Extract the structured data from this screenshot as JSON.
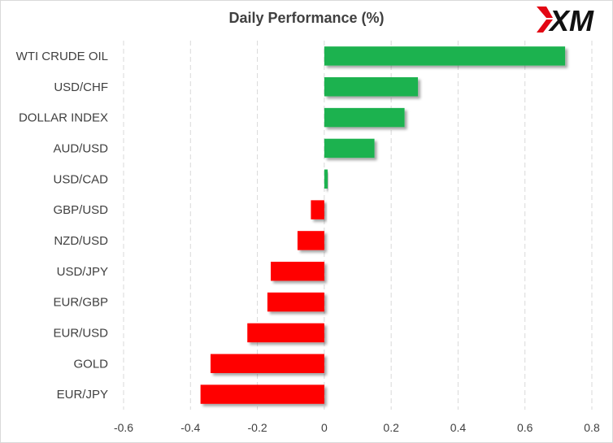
{
  "chart_data": {
    "type": "bar",
    "orientation": "horizontal",
    "title": "Daily Performance (%)",
    "categories": [
      "WTI CRUDE OIL",
      "USD/CHF",
      "DOLLAR INDEX",
      "AUD/USD",
      "USD/CAD",
      "GBP/USD",
      "NZD/USD",
      "USD/JPY",
      "EUR/GBP",
      "EUR/USD",
      "GOLD",
      "EUR/JPY"
    ],
    "values": [
      0.72,
      0.28,
      0.24,
      0.15,
      0.01,
      -0.04,
      -0.08,
      -0.16,
      -0.17,
      -0.23,
      -0.34,
      -0.37
    ],
    "xlim": [
      -0.6,
      0.8
    ],
    "xticks": [
      -0.6,
      -0.4,
      -0.2,
      0,
      0.2,
      0.4,
      0.6,
      0.8
    ],
    "xtick_labels": [
      "-0.6",
      "-0.4",
      "-0.2",
      "0",
      "0.2",
      "0.4",
      "0.6",
      "0.8"
    ],
    "grid": "vertical dashed",
    "legend": "none",
    "colors": {
      "positive": "#1fb24f",
      "negative": "#ff0000"
    }
  },
  "brand": {
    "logo_text": "XM",
    "accent": "#e30613"
  }
}
